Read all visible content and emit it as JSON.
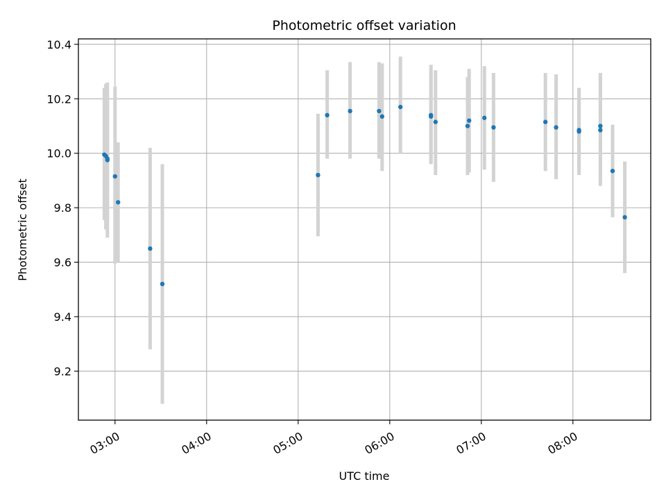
{
  "chart_data": {
    "type": "scatter",
    "title": "Photometric offset variation",
    "xlabel": "UTC time",
    "ylabel": "Photometric offset",
    "x_ticks": [
      "03:00",
      "04:00",
      "05:00",
      "06:00",
      "07:00",
      "08:00"
    ],
    "y_ticks": [
      "9.2",
      "9.4",
      "9.6",
      "9.8",
      "10.0",
      "10.2",
      "10.4"
    ],
    "xlim": [
      "02:36",
      "08:51"
    ],
    "ylim": [
      9.02,
      10.42
    ],
    "grid": true,
    "colors": {
      "point": "#1f77b4",
      "errorbar": "#d3d3d3",
      "grid": "#b0b0b0",
      "axis": "#000000"
    },
    "series": [
      {
        "points": [
          {
            "x": "02:53",
            "y": 9.995,
            "y_low": 9.755,
            "y_high": 10.24
          },
          {
            "x": "02:54",
            "y": 9.99,
            "y_low": 9.72,
            "y_high": 10.255
          },
          {
            "x": "02:55",
            "y": 9.975,
            "y_low": 9.69,
            "y_high": 10.26
          },
          {
            "x": "02:55",
            "y": 9.98,
            "y_low": 9.74,
            "y_high": 10.22
          },
          {
            "x": "03:00",
            "y": 9.915,
            "y_low": 9.595,
            "y_high": 10.245
          },
          {
            "x": "03:02",
            "y": 9.82,
            "y_low": 9.6,
            "y_high": 10.04
          },
          {
            "x": "03:23",
            "y": 9.65,
            "y_low": 9.28,
            "y_high": 10.02
          },
          {
            "x": "03:31",
            "y": 9.52,
            "y_low": 9.08,
            "y_high": 9.96
          },
          {
            "x": "05:13",
            "y": 9.92,
            "y_low": 9.695,
            "y_high": 10.145
          },
          {
            "x": "05:19",
            "y": 10.14,
            "y_low": 9.98,
            "y_high": 10.305
          },
          {
            "x": "05:34",
            "y": 10.155,
            "y_low": 9.98,
            "y_high": 10.335
          },
          {
            "x": "05:53",
            "y": 10.155,
            "y_low": 9.98,
            "y_high": 10.335
          },
          {
            "x": "05:55",
            "y": 10.135,
            "y_low": 9.935,
            "y_high": 10.33
          },
          {
            "x": "06:07",
            "y": 10.17,
            "y_low": 10.0,
            "y_high": 10.355
          },
          {
            "x": "06:27",
            "y": 10.14,
            "y_low": 9.96,
            "y_high": 10.325
          },
          {
            "x": "06:27",
            "y": 10.135,
            "y_low": 9.97,
            "y_high": 10.3
          },
          {
            "x": "06:30",
            "y": 10.115,
            "y_low": 9.92,
            "y_high": 10.305
          },
          {
            "x": "06:51",
            "y": 10.1,
            "y_low": 9.92,
            "y_high": 10.28
          },
          {
            "x": "06:52",
            "y": 10.12,
            "y_low": 9.93,
            "y_high": 10.31
          },
          {
            "x": "07:02",
            "y": 10.13,
            "y_low": 9.94,
            "y_high": 10.32
          },
          {
            "x": "07:08",
            "y": 10.095,
            "y_low": 9.895,
            "y_high": 10.295
          },
          {
            "x": "07:42",
            "y": 10.115,
            "y_low": 9.935,
            "y_high": 10.295
          },
          {
            "x": "07:49",
            "y": 10.095,
            "y_low": 9.905,
            "y_high": 10.29
          },
          {
            "x": "08:04",
            "y": 10.085,
            "y_low": 9.92,
            "y_high": 10.24
          },
          {
            "x": "08:04",
            "y": 10.08,
            "y_low": 9.93,
            "y_high": 10.24
          },
          {
            "x": "08:18",
            "y": 10.1,
            "y_low": 9.91,
            "y_high": 10.295
          },
          {
            "x": "08:18",
            "y": 10.085,
            "y_low": 9.88,
            "y_high": 10.285
          },
          {
            "x": "08:26",
            "y": 9.935,
            "y_low": 9.765,
            "y_high": 10.105
          },
          {
            "x": "08:34",
            "y": 9.765,
            "y_low": 9.56,
            "y_high": 9.97
          }
        ]
      }
    ]
  }
}
